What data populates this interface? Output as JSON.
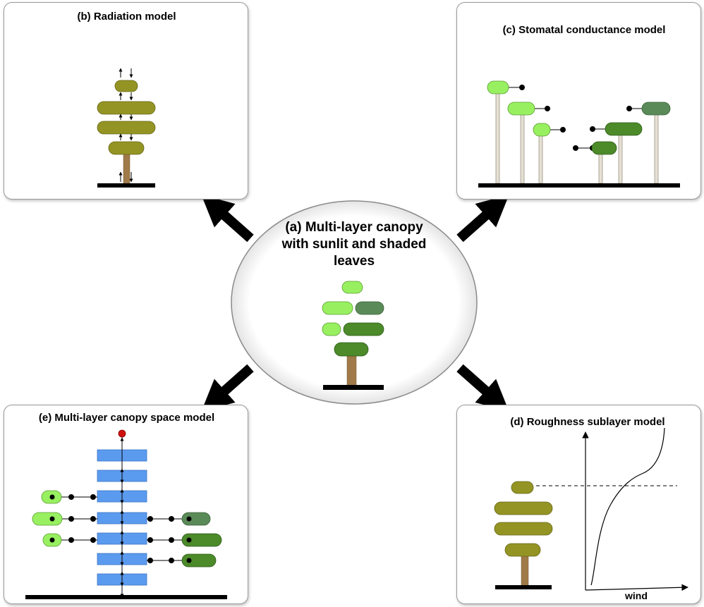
{
  "panels": {
    "a": {
      "title": "(a) Multi-layer canopy with sunlit and shaded leaves"
    },
    "b": {
      "title": "(b) Radiation model"
    },
    "c": {
      "title": "(c) Stomatal conductance model"
    },
    "d": {
      "title": "(d) Roughness sublayer model",
      "axis_label": "wind"
    },
    "e": {
      "title": "(e) Multi-layer canopy space model"
    }
  },
  "colors": {
    "sunlit": "#98f060",
    "shaded_dark": "#4c8a2a",
    "shaded_muted": "#5a8a58",
    "olive": "#949424",
    "trunk": "#a07a48",
    "ground": "#000000",
    "air_box": "#5b9bef",
    "source_dot": "#d01010",
    "stem": "#e6e0d4"
  }
}
